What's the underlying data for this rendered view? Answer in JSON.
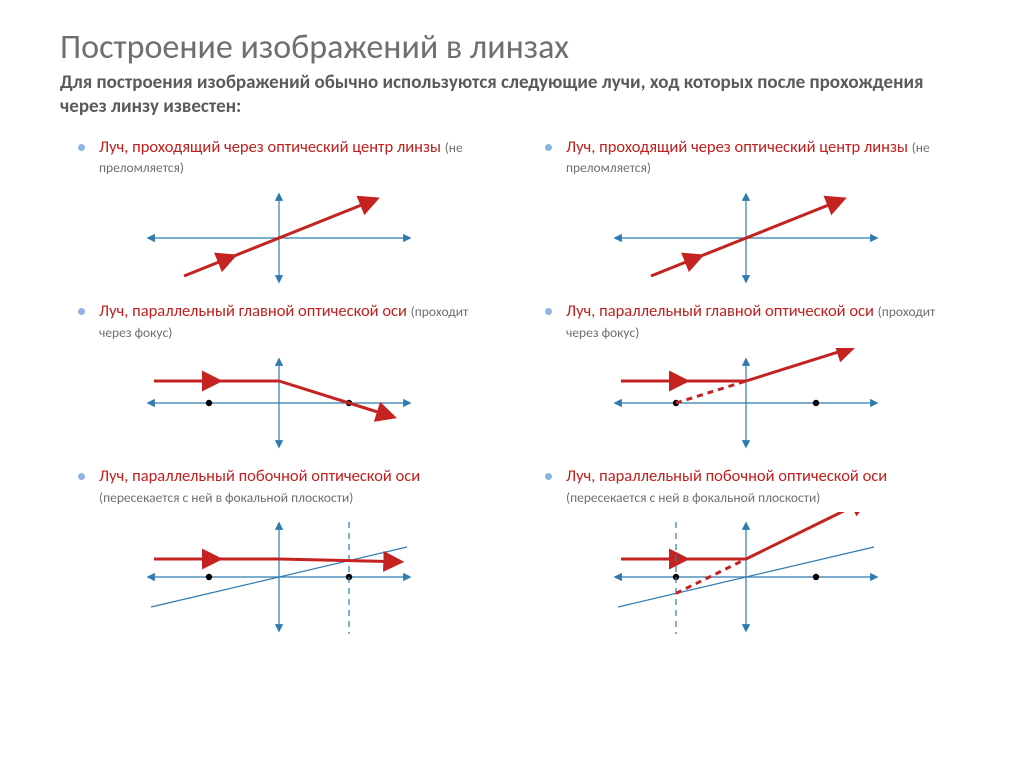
{
  "title": "Построение изображений в линзах",
  "title_color": "#6f6f6f",
  "title_fontsize": 34,
  "subtitle": "Для построения изображений обычно используются следующие лучи, ход которых после прохождения через линзу известен:",
  "subtitle_color": "#5a5a5a",
  "subtitle_fontsize": 19,
  "bullet_disc_color": "#8eb4e3",
  "bullet_main_color": "#c0201e",
  "bullet_sub_color": "#6f6f6f",
  "bullet_main_fontsize": 16.5,
  "bullet_sub_fontsize": 13.5,
  "ray_color": "#c52222",
  "axis_color": "#2f7bb0",
  "ray_width": 3,
  "axis_width": 1.2,
  "dash_pattern": "6 5",
  "columns": [
    {
      "lens": "converging",
      "sections": [
        {
          "main": "Луч, проходящий через оптический центр линзы ",
          "sub": "(не преломляется)",
          "diagram": "center"
        },
        {
          "main": "Луч, параллельный главной оптической оси ",
          "sub": "(проходит через фокус)",
          "diagram": "parallel"
        },
        {
          "main": "Луч, параллельный побочной оптической оси ",
          "sub": "(пересекается с ней в фокальной плоскости)",
          "diagram": "secondary"
        }
      ]
    },
    {
      "lens": "diverging",
      "sections": [
        {
          "main": "Луч, проходящий через оптический центр линзы ",
          "sub": "(не преломляется)",
          "diagram": "center"
        },
        {
          "main": "Луч, параллельный главной оптической оси ",
          "sub": "(проходит через фокус)",
          "diagram": "parallel"
        },
        {
          "main": "Луч, параллельный побочной оптической оси ",
          "sub": "(пересекается с ней в фокальной плоскости)",
          "diagram": "secondary"
        }
      ]
    }
  ]
}
